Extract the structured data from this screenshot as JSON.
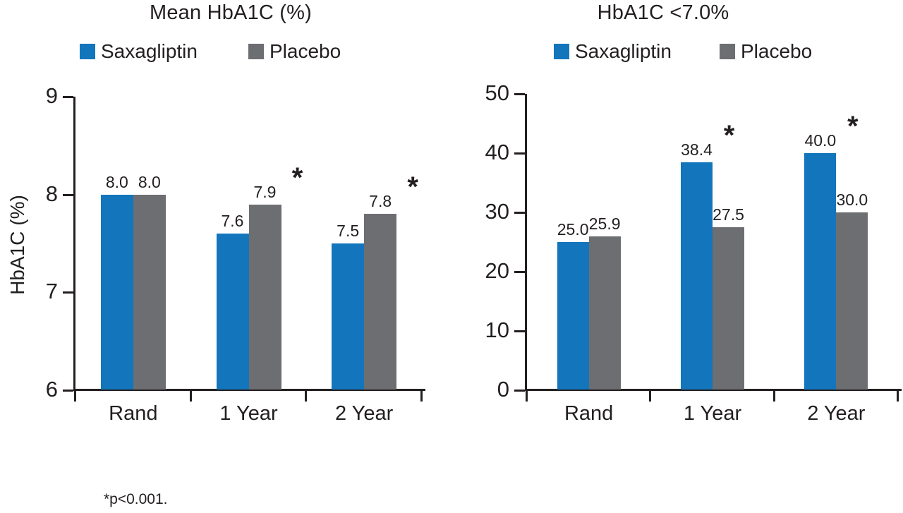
{
  "figure": {
    "footnote": "*p<0.001.",
    "significance_marker": "*",
    "colors": {
      "saxagliptin_blue": "#1375BC",
      "placebo_gray": "#6D6E71",
      "ink": "#231F20",
      "background": "#FFFFFF"
    }
  },
  "legend": {
    "items": [
      {
        "label": "Saxagliptin",
        "color": "#1375BC"
      },
      {
        "label": "Placebo",
        "color": "#6D6E71"
      }
    ]
  },
  "chart_data": [
    {
      "type": "bar",
      "title": "Mean HbA1C (%)",
      "xlabel": "",
      "ylabel": "HbA1C (%)",
      "categories": [
        "Rand",
        "1 Year",
        "2 Year"
      ],
      "series": [
        {
          "name": "Saxagliptin",
          "values": [
            8.0,
            7.6,
            7.5
          ]
        },
        {
          "name": "Placebo",
          "values": [
            8.0,
            7.9,
            7.8
          ]
        }
      ],
      "value_labels": [
        [
          "8.0",
          "8.0"
        ],
        [
          "7.6",
          "7.9"
        ],
        [
          "7.5",
          "7.8"
        ]
      ],
      "significance": [
        false,
        true,
        true
      ],
      "ylim": [
        6,
        9
      ],
      "yticks": [
        9,
        8,
        7,
        6
      ],
      "grid": false,
      "legend_position": "top"
    },
    {
      "type": "bar",
      "title": "HbA1C <7.0%",
      "xlabel": "",
      "ylabel": "",
      "categories": [
        "Rand",
        "1 Year",
        "2 Year"
      ],
      "series": [
        {
          "name": "Saxagliptin",
          "values": [
            25.0,
            38.4,
            40.0
          ]
        },
        {
          "name": "Placebo",
          "values": [
            25.9,
            27.5,
            30.0
          ]
        }
      ],
      "value_labels": [
        [
          "25.0",
          "25.9"
        ],
        [
          "38.4",
          "27.5"
        ],
        [
          "40.0",
          "30.0"
        ]
      ],
      "significance": [
        false,
        true,
        true
      ],
      "ylim": [
        0,
        50
      ],
      "yticks": [
        50,
        40,
        30,
        20,
        10,
        0
      ],
      "grid": false,
      "legend_position": "top"
    }
  ]
}
